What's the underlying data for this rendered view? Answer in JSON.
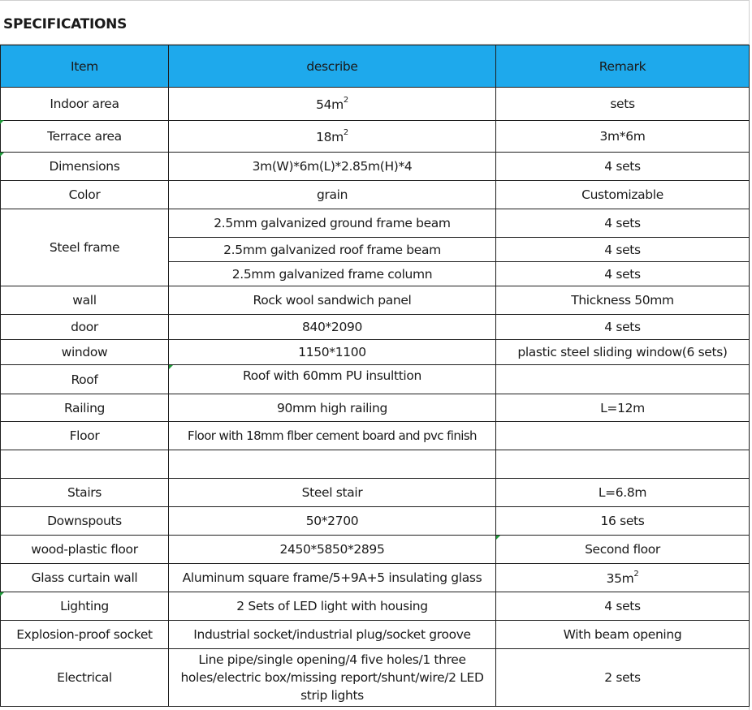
{
  "sheet": {
    "title": "SPECIFICATIONS"
  },
  "table": {
    "headers": {
      "item": "Item",
      "describe": "describe",
      "remark": "Remark"
    },
    "rows": [
      {
        "item": "Indoor area",
        "describe": "54m",
        "describe_sup": "2",
        "remark": "sets"
      },
      {
        "item": "Terrace area",
        "describe": "18m",
        "describe_sup": "2",
        "remark": "3m*6m"
      },
      {
        "item": "Dimensions",
        "describe": "3m(W)*6m(L)*2.85m(H)*4",
        "remark": "4 sets"
      },
      {
        "item": "Color",
        "describe": "grain",
        "remark": "Customizable"
      },
      {
        "item": "Steel frame",
        "sub": [
          {
            "describe": "2.5mm galvanized ground frame beam",
            "remark": "4 sets"
          },
          {
            "describe": "2.5mm galvanized roof frame beam",
            "remark": "4 sets"
          },
          {
            "describe": "2.5mm galvanized frame column",
            "remark": "4 sets"
          }
        ]
      },
      {
        "item": "wall",
        "describe": "Rock wool sandwich panel",
        "remark": "Thickness 50mm"
      },
      {
        "item": "door",
        "describe": "840*2090",
        "remark": "4 sets"
      },
      {
        "item": "window",
        "describe": "1150*1100",
        "remark": "plastic steel sliding window(6 sets)"
      },
      {
        "item": "Roof",
        "describe": "Roof with 60mm PU insulttion",
        "remark": ""
      },
      {
        "item": "Railing",
        "describe": "90mm high railing",
        "remark": "L=12m"
      },
      {
        "item": "Floor",
        "describe": "Floor with  18mm flber cement board and pvc finish",
        "remark": ""
      },
      {
        "item": "",
        "describe": "",
        "remark": ""
      },
      {
        "item": "Stairs",
        "describe": "Steel stair",
        "remark": "L=6.8m"
      },
      {
        "item": "Downspouts",
        "describe": "50*2700",
        "remark": "16 sets"
      },
      {
        "item": "wood-plastic floor",
        "describe": "2450*5850*2895",
        "remark": "Second floor"
      },
      {
        "item": "Glass curtain wall",
        "describe": "Aluminum square frame/5+9A+5 insulating glass",
        "remark": "35m",
        "remark_sup": "2"
      },
      {
        "item": "Lighting",
        "describe": "2 Sets of LED light with housing",
        "remark": "4 sets"
      },
      {
        "item": "Explosion-proof socket",
        "describe": "Industrial socket/industrial plug/socket groove",
        "remark": "With beam opening"
      },
      {
        "item": "Electrical",
        "describe": "Line pipe/single opening/4 five holes/1 three holes/electric box/missing report/shunt/wire/2 LED strip lights",
        "remark": "2 sets"
      }
    ]
  },
  "colors": {
    "header_fill": "#1ea9ec",
    "cell_border": "#1e1e1e",
    "comment_marker": "#1f9a3a"
  }
}
